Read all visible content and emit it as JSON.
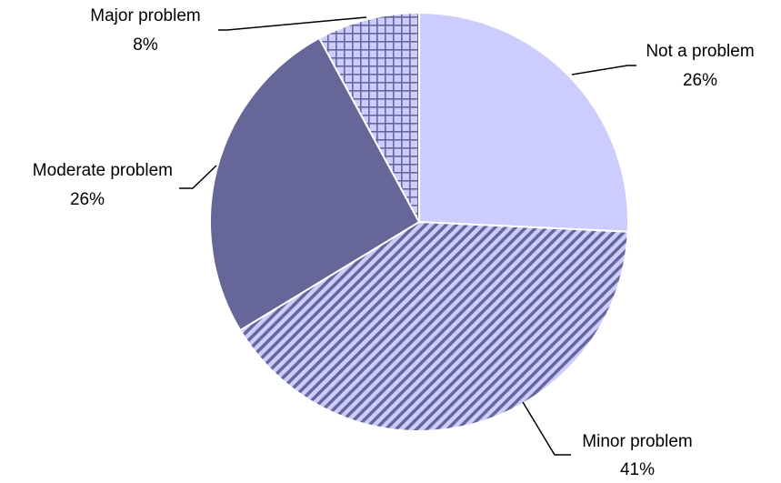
{
  "chart_data": {
    "type": "pie",
    "categories": [
      "Not a problem",
      "Minor problem",
      "Moderate problem",
      "Major problem"
    ],
    "values": [
      26,
      41,
      26,
      8
    ],
    "value_labels": [
      "26%",
      "41%",
      "26%",
      "8%"
    ],
    "colors": [
      "#ccccff",
      "#666699",
      "#666699",
      "#ccccff"
    ],
    "patterns": [
      "solid",
      "diagonal",
      "solid",
      "grid"
    ]
  }
}
